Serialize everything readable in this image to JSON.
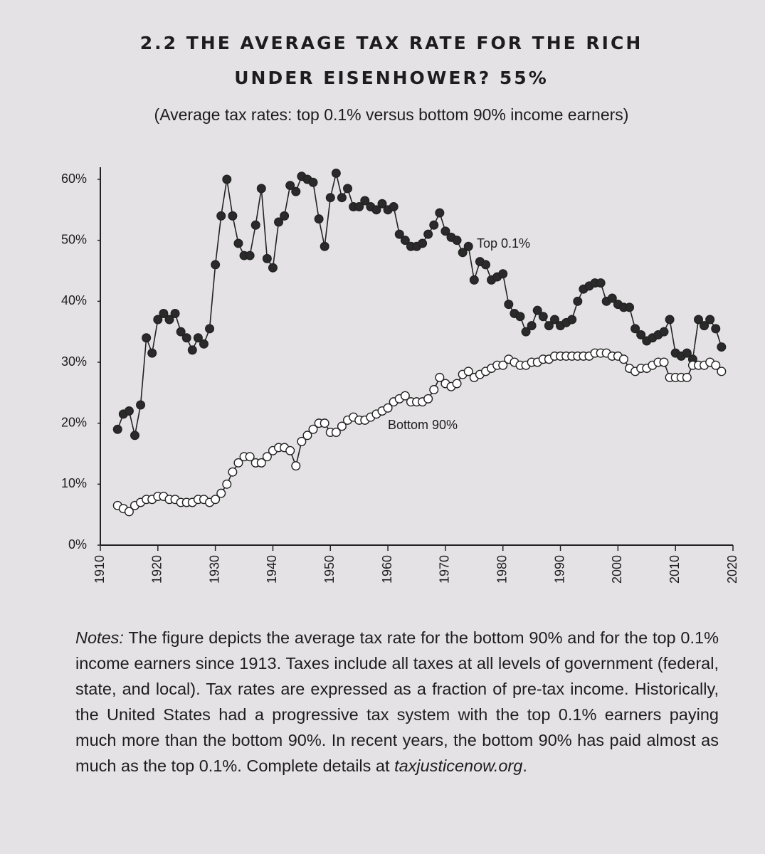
{
  "chart_data": {
    "type": "line",
    "title_lines": [
      "2.2 THE AVERAGE TAX RATE FOR THE RICH",
      "UNDER EISENHOWER? 55%"
    ],
    "subtitle": "(Average tax rates: top 0.1% versus bottom 90% income earners)",
    "x": [
      1913,
      1914,
      1915,
      1916,
      1917,
      1918,
      1919,
      1920,
      1921,
      1922,
      1923,
      1924,
      1925,
      1926,
      1927,
      1928,
      1929,
      1930,
      1931,
      1932,
      1933,
      1934,
      1935,
      1936,
      1937,
      1938,
      1939,
      1940,
      1941,
      1942,
      1943,
      1944,
      1945,
      1946,
      1947,
      1948,
      1949,
      1950,
      1951,
      1952,
      1953,
      1954,
      1955,
      1956,
      1957,
      1958,
      1959,
      1960,
      1961,
      1962,
      1963,
      1964,
      1965,
      1966,
      1967,
      1968,
      1969,
      1970,
      1971,
      1972,
      1973,
      1974,
      1975,
      1976,
      1977,
      1978,
      1979,
      1980,
      1981,
      1982,
      1983,
      1984,
      1985,
      1986,
      1987,
      1988,
      1989,
      1990,
      1991,
      1992,
      1993,
      1994,
      1995,
      1996,
      1997,
      1998,
      1999,
      2000,
      2001,
      2002,
      2003,
      2004,
      2005,
      2006,
      2007,
      2008,
      2009,
      2010,
      2011,
      2012,
      2013,
      2014,
      2015,
      2016,
      2017,
      2018
    ],
    "series": [
      {
        "name": "Top 0.1%",
        "color": "#222222",
        "marker_fill": "#2a2a2a",
        "values": [
          19,
          21.5,
          22,
          18,
          23,
          34,
          31.5,
          37,
          38,
          37,
          38,
          35,
          34,
          32,
          34,
          33,
          35.5,
          46,
          54,
          60,
          54,
          49.5,
          47.5,
          47.5,
          52.5,
          58.5,
          47,
          45.5,
          53,
          54,
          59,
          58,
          60.5,
          60,
          59.5,
          53.5,
          49,
          57,
          61,
          57,
          58.5,
          55.5,
          55.5,
          56.5,
          55.5,
          55,
          56,
          55,
          55.5,
          51,
          50,
          49,
          49,
          49.5,
          51,
          52.5,
          54.5,
          51.5,
          50.5,
          50,
          48,
          49,
          43.5,
          46.5,
          46,
          43.5,
          44,
          44.5,
          39.5,
          38,
          37.5,
          35,
          36,
          38.5,
          37.5,
          36,
          37,
          36,
          36.5,
          37,
          40,
          42,
          42.5,
          43,
          43,
          40,
          40.5,
          39.5,
          39,
          39,
          35.5,
          34.5,
          33.5,
          34,
          34.5,
          35,
          37,
          31.5,
          31,
          31.5,
          30.5,
          37,
          36,
          37,
          35.5,
          32.5
        ]
      },
      {
        "name": "Bottom 90%",
        "color": "#222222",
        "marker_fill": "#ffffff",
        "values": [
          6.5,
          6,
          5.5,
          6.5,
          7,
          7.5,
          7.5,
          8,
          8,
          7.5,
          7.5,
          7,
          7,
          7,
          7.5,
          7.5,
          7,
          7.5,
          8.5,
          10,
          12,
          13.5,
          14.5,
          14.5,
          13.5,
          13.5,
          14.5,
          15.5,
          16,
          16,
          15.5,
          13,
          17,
          18,
          19,
          20,
          20,
          18.5,
          18.5,
          19.5,
          20.5,
          21,
          20.5,
          20.5,
          21,
          21.5,
          22,
          22.5,
          23.5,
          24,
          24.5,
          23.5,
          23.5,
          23.5,
          24,
          25.5,
          27.5,
          26.5,
          26,
          26.5,
          28,
          28.5,
          27.5,
          28,
          28.5,
          29,
          29.5,
          29.5,
          30.5,
          30,
          29.5,
          29.5,
          30,
          30,
          30.5,
          30.5,
          31,
          31,
          31,
          31,
          31,
          31,
          31,
          31.5,
          31.5,
          31.5,
          31,
          31,
          30.5,
          29,
          28.5,
          29,
          29,
          29.5,
          30,
          30,
          27.5,
          27.5,
          27.5,
          27.5,
          29.5,
          29.5,
          29.5,
          30,
          29.5,
          28.5
        ]
      }
    ],
    "xlim": [
      1910,
      2020
    ],
    "xticks": [
      1910,
      1920,
      1930,
      1940,
      1950,
      1960,
      1970,
      1980,
      1990,
      2000,
      2010,
      2020
    ],
    "ylim": [
      0,
      60
    ],
    "yticks": [
      {
        "value": 0,
        "label": "0%"
      },
      {
        "value": 10,
        "label": "10%"
      },
      {
        "value": 20,
        "label": "20%"
      },
      {
        "value": 30,
        "label": "30%"
      },
      {
        "value": 40,
        "label": "40%"
      },
      {
        "value": 50,
        "label": "50%"
      },
      {
        "value": 60,
        "label": "60%"
      }
    ],
    "grid": false
  },
  "notes": {
    "label": "Notes:",
    "text": "The figure depicts the average tax rate for the bottom 90% and for the top 0.1% income earners since 1913. Taxes include all taxes at all levels of government (federal, state, and local). Tax rates are expressed as a fraction of pre-tax income. Historically, the United States had a progressive tax system with the top 0.1% earners paying much more than the bottom 90%. In recent years, the bottom 90% has paid almost as much as the top 0.1%. Complete details at",
    "link": "taxjusticenow.org",
    "end": "."
  }
}
